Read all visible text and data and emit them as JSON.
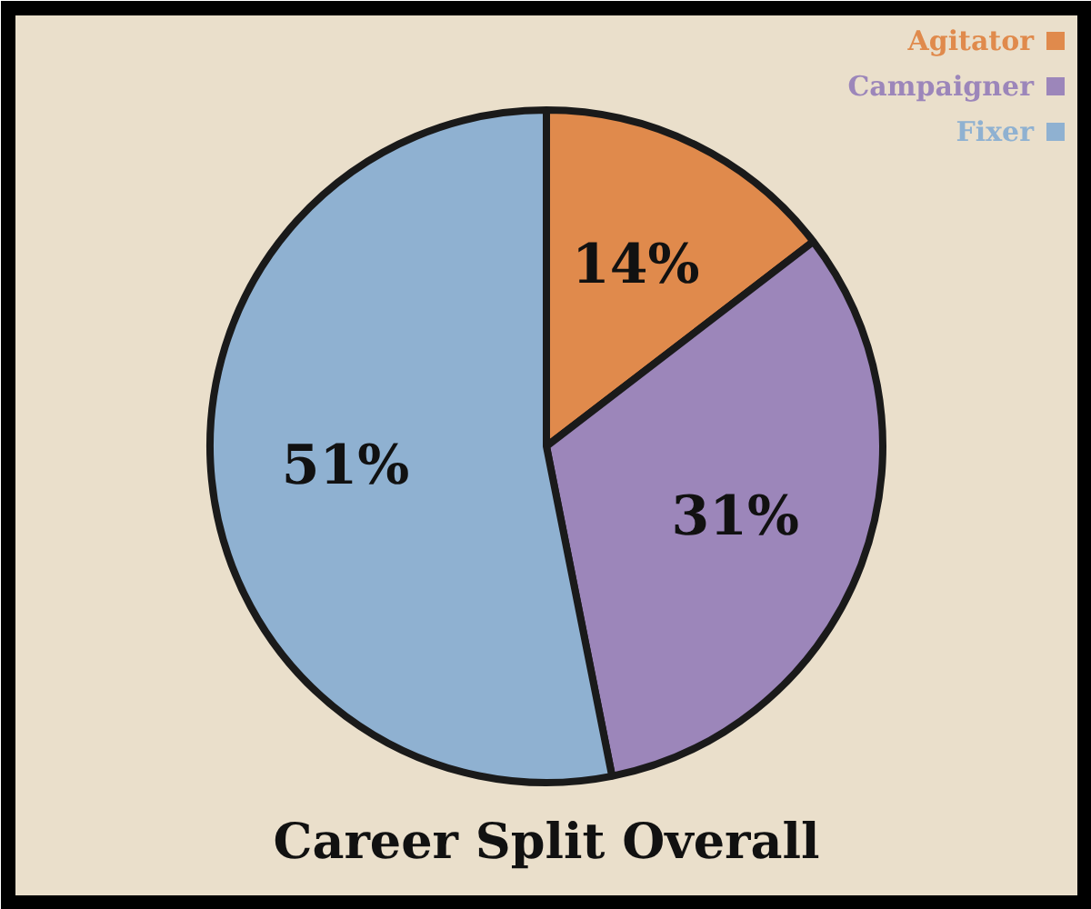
{
  "chart_data": {
    "type": "pie",
    "title": "Career Split Overall",
    "categories": [
      "Agitator",
      "Campaigner",
      "Fixer"
    ],
    "values": [
      14,
      31,
      51
    ],
    "colors": [
      "#e08a4c",
      "#9c86ba",
      "#8fb1d1"
    ],
    "value_labels": [
      "14%",
      "31%",
      "51%"
    ],
    "legend": "top right"
  }
}
